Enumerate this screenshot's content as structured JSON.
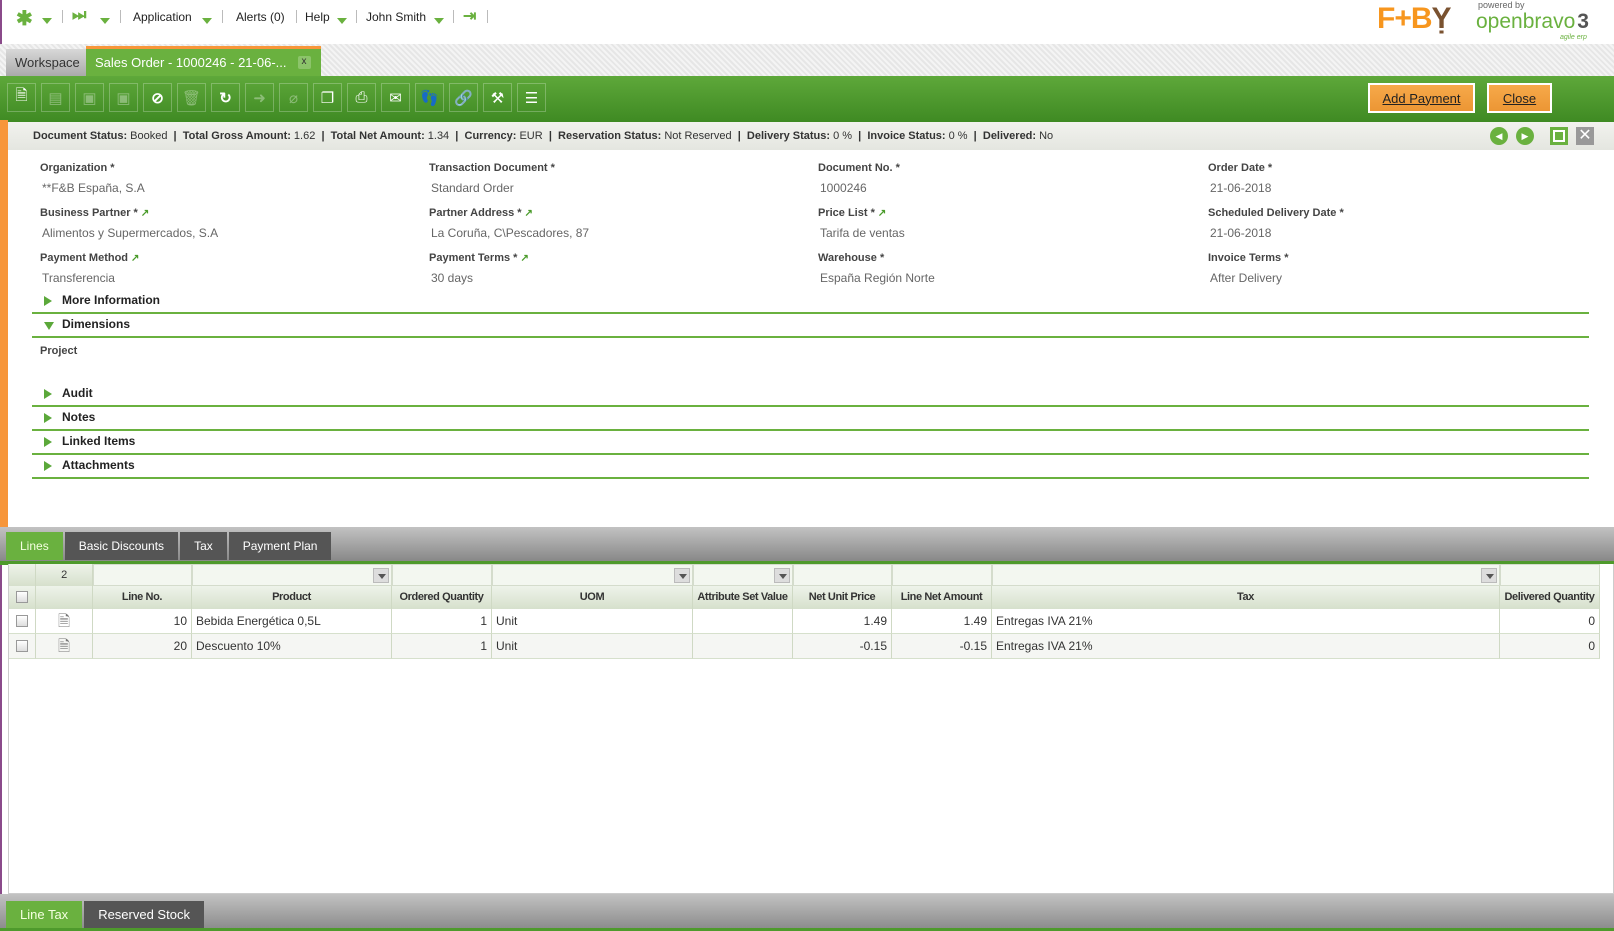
{
  "topbar": {
    "application": "Application",
    "alerts": "Alerts (0)",
    "help": "Help",
    "user": "John Smith"
  },
  "logo": {
    "brand": "F+B",
    "powered": "powered by",
    "product": "openbravo",
    "version": "3",
    "tagline": "agile erp"
  },
  "window_tabs": [
    {
      "label": "Workspace",
      "active": false
    },
    {
      "label": "Sales Order - 1000246 - 21-06-...",
      "active": true,
      "close": "x"
    }
  ],
  "toolbar": {
    "icons": [
      "new-document-icon",
      "grid-icon",
      "save-icon",
      "save-close-icon",
      "cancel-icon",
      "delete-icon",
      "refresh-icon",
      "export-icon",
      "attach-icon",
      "copy-icon",
      "print-icon",
      "email-icon",
      "audit-trail-icon",
      "link-icon",
      "tools-icon",
      "layout-icon"
    ],
    "add_payment": "Add Payment",
    "close": "Close"
  },
  "status": {
    "items": [
      {
        "label": "Document Status:",
        "value": "Booked"
      },
      {
        "label": "Total Gross Amount:",
        "value": "1.62"
      },
      {
        "label": "Total Net Amount:",
        "value": "1.34"
      },
      {
        "label": "Currency:",
        "value": "EUR"
      },
      {
        "label": "Reservation Status:",
        "value": "Not Reserved"
      },
      {
        "label": "Delivery Status:",
        "value": "0 %"
      },
      {
        "label": "Invoice Status:",
        "value": "0 %"
      },
      {
        "label": "Delivered:",
        "value": "No"
      }
    ]
  },
  "form": {
    "fields": [
      {
        "label": "Organization *",
        "value": "**F&B España, S.A",
        "link": false
      },
      {
        "label": "Transaction Document *",
        "value": "Standard Order",
        "link": false
      },
      {
        "label": "Document No. *",
        "value": "1000246",
        "link": false
      },
      {
        "label": "Order Date *",
        "value": "21-06-2018",
        "link": false
      },
      {
        "label": "Business Partner *",
        "value": "Alimentos y Supermercados, S.A",
        "link": true
      },
      {
        "label": "Partner Address *",
        "value": "La Coruña, C\\Pescadores, 87",
        "link": true
      },
      {
        "label": "Price List *",
        "value": "Tarifa de ventas",
        "link": true
      },
      {
        "label": "Scheduled Delivery Date *",
        "value": "21-06-2018",
        "link": false
      },
      {
        "label": "Payment Method",
        "value": "Transferencia",
        "link": true
      },
      {
        "label": "Payment Terms *",
        "value": "30 days",
        "link": true
      },
      {
        "label": "Warehouse *",
        "value": "España Región Norte",
        "link": false
      },
      {
        "label": "Invoice Terms *",
        "value": "After Delivery",
        "link": false
      }
    ],
    "sections": {
      "more_info": "More Information",
      "dimensions": "Dimensions",
      "project": "Project",
      "audit": "Audit",
      "notes": "Notes",
      "linked": "Linked Items",
      "attachments": "Attachments"
    }
  },
  "subtabs": [
    "Lines",
    "Basic Discounts",
    "Tax",
    "Payment Plan"
  ],
  "grid": {
    "count": "2",
    "columns": [
      "Line No.",
      "Product",
      "Ordered Quantity",
      "UOM",
      "Attribute Set Value",
      "Net Unit Price",
      "Line Net Amount",
      "Tax",
      "Delivered Quantity"
    ],
    "rows": [
      [
        "10",
        "Bebida Energética 0,5L",
        "1",
        "Unit",
        "",
        "1.49",
        "1.49",
        "Entregas IVA 21%",
        "0"
      ],
      [
        "20",
        "Descuento 10%",
        "1",
        "Unit",
        "",
        "-0.15",
        "-0.15",
        "Entregas IVA 21%",
        "0"
      ]
    ]
  },
  "bottom_tabs": [
    "Line Tax",
    "Reserved Stock"
  ],
  "colors": {
    "green": "#6ab13f",
    "orange": "#f7963a",
    "button": "#ec9634"
  }
}
